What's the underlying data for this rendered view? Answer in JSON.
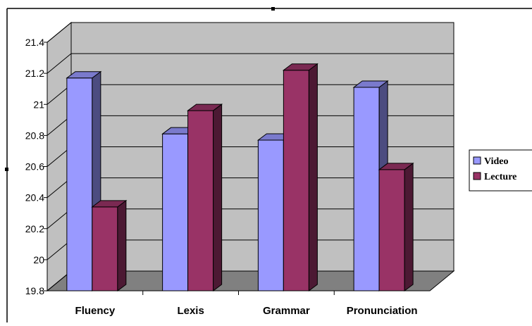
{
  "chart_data": {
    "type": "bar",
    "categories": [
      "Fluency",
      "Lexis",
      "Grammar",
      "Pronunciation"
    ],
    "series": [
      {
        "name": "Video",
        "values": [
          21.17,
          20.81,
          20.77,
          21.11
        ],
        "color": "#9999ff",
        "side_color": "#4c4c80",
        "top_color": "#7a7acc"
      },
      {
        "name": "Lecture",
        "values": [
          20.34,
          20.96,
          21.22,
          20.58
        ],
        "color": "#993366",
        "side_color": "#4c1933",
        "top_color": "#7a2952"
      }
    ],
    "yticks": [
      "19.8",
      "20",
      "20.2",
      "20.4",
      "20.6",
      "20.8",
      "21",
      "21.2",
      "21.4"
    ],
    "ylim": [
      19.8,
      21.4
    ],
    "grid": true,
    "legend": "right",
    "colors": {
      "wall": "#c0c0c0",
      "floor": "#808080"
    }
  }
}
